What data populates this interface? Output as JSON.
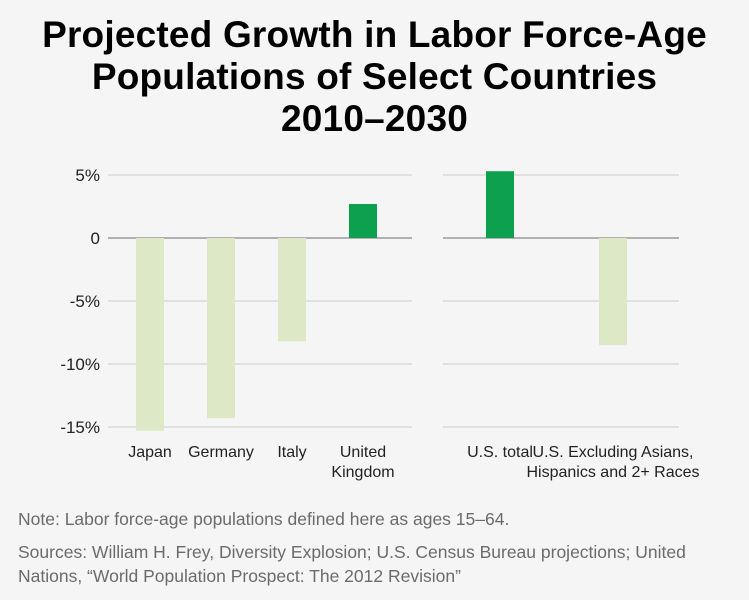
{
  "title_lines": [
    "Projected Growth in Labor Force-Age",
    "Populations of Select Countries",
    "2010–2030"
  ],
  "note": "Note: Labor force-age populations defined here as ages 15–64.",
  "sources": "Sources: William H. Frey, Diversity Explosion; U.S. Census Bureau projections; United Nations, “World Population Prospect: The 2012 Revision”",
  "colors": {
    "positive_bar": "#0da04e",
    "negative_bar": "#dde9c6",
    "zero_line": "#888888",
    "grid": "#cccccc"
  },
  "chart_data": [
    {
      "type": "bar",
      "categories": [
        "Japan",
        "Germany",
        "Italy",
        "United Kingdom"
      ],
      "category_label_lines": [
        [
          "Japan"
        ],
        [
          "Germany"
        ],
        [
          "Italy"
        ],
        [
          "United",
          "Kingdom"
        ]
      ],
      "values": [
        -15.3,
        -14.3,
        -8.2,
        2.7
      ],
      "yticks": [
        5,
        0,
        -5,
        -10,
        -15
      ],
      "ytick_labels": [
        "5%",
        "0",
        "-5%",
        "-10%",
        "-15%"
      ],
      "ylim": [
        -15.5,
        5.3
      ],
      "grid": true
    },
    {
      "type": "bar",
      "categories": [
        "U.S. total",
        "U.S. Excluding Asians, Hispanics and 2+ Races"
      ],
      "category_label_lines": [
        [
          "U.S. total"
        ],
        [
          "U.S. Excluding Asians,",
          "Hispanics and 2+ Races"
        ]
      ],
      "values": [
        5.3,
        -8.5
      ],
      "yticks": [
        5,
        0,
        -5,
        -10,
        -15
      ],
      "ylim": [
        -15.5,
        5.3
      ],
      "grid": true
    }
  ]
}
